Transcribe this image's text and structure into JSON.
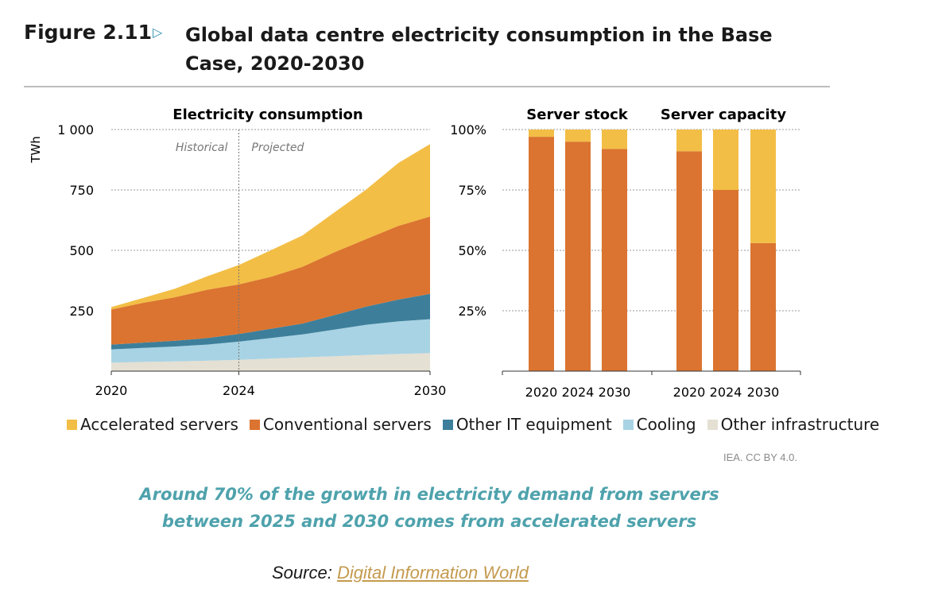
{
  "figure": {
    "label": "Figure 2.11",
    "title": "Global data centre electricity consumption in the Base Case, 2020-2030",
    "credit": "IEA. CC BY 4.0.",
    "caption": "Around 70% of the growth in electricity demand from servers between 2025 and 2030 comes from accelerated servers",
    "source_prefix": "Source:",
    "source_link": "Digital Information World"
  },
  "colors": {
    "accelerated": "#F2BE45",
    "conventional": "#DB7430",
    "other_it": "#3D7F9B",
    "cooling": "#A8D3E4",
    "other_infra": "#E4E0D3"
  },
  "legend": [
    {
      "name": "Accelerated servers",
      "color": "#F2BE45"
    },
    {
      "name": "Conventional servers",
      "color": "#DB7430"
    },
    {
      "name": "Other IT equipment",
      "color": "#3D7F9B"
    },
    {
      "name": "Cooling",
      "color": "#A8D3E4"
    },
    {
      "name": "Other infrastructure",
      "color": "#E4E0D3"
    }
  ],
  "chart_data": [
    {
      "type": "area",
      "title": "Electricity consumption",
      "ylabel": "TWh",
      "xlabel": "",
      "x": [
        2020,
        2021,
        2022,
        2023,
        2024,
        2025,
        2026,
        2027,
        2028,
        2029,
        2030
      ],
      "xticks": [
        "2020",
        "2024",
        "2030"
      ],
      "yticks": [
        "250",
        "500",
        "750",
        "1 000"
      ],
      "ylim": [
        0,
        1000
      ],
      "grid": true,
      "annotations": [
        "Historical",
        "Projected"
      ],
      "divider_x": 2024,
      "stacked": true,
      "series": [
        {
          "name": "Other infrastructure",
          "values": [
            35,
            38,
            40,
            43,
            47,
            52,
            57,
            62,
            67,
            71,
            75
          ]
        },
        {
          "name": "Cooling",
          "values": [
            55,
            58,
            62,
            67,
            75,
            85,
            95,
            110,
            125,
            135,
            140
          ]
        },
        {
          "name": "Other IT equipment",
          "values": [
            20,
            22,
            24,
            27,
            32,
            38,
            45,
            60,
            75,
            90,
            105
          ]
        },
        {
          "name": "Conventional servers",
          "values": [
            145,
            165,
            180,
            200,
            205,
            215,
            235,
            260,
            280,
            305,
            320
          ]
        },
        {
          "name": "Accelerated servers",
          "values": [
            10,
            20,
            35,
            55,
            80,
            110,
            130,
            165,
            205,
            260,
            300
          ]
        }
      ]
    },
    {
      "type": "bar",
      "title": "Server stock",
      "stacked": true,
      "categories": [
        "2020",
        "2024",
        "2030"
      ],
      "yticks": [
        "25%",
        "50%",
        "75%",
        "100%"
      ],
      "ylim": [
        0,
        100
      ],
      "grid": true,
      "series": [
        {
          "name": "Conventional servers",
          "values": [
            97,
            95,
            92
          ]
        },
        {
          "name": "Accelerated servers",
          "values": [
            3,
            5,
            8
          ]
        }
      ]
    },
    {
      "type": "bar",
      "title": "Server capacity",
      "stacked": true,
      "categories": [
        "2020",
        "2024",
        "2030"
      ],
      "ylim": [
        0,
        100
      ],
      "grid": true,
      "series": [
        {
          "name": "Conventional servers",
          "values": [
            91,
            75,
            53
          ]
        },
        {
          "name": "Accelerated servers",
          "values": [
            9,
            25,
            47
          ]
        }
      ]
    }
  ]
}
